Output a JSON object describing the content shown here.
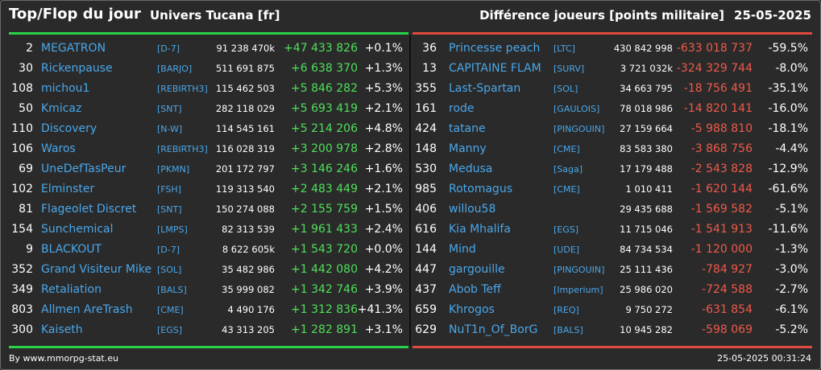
{
  "header": {
    "title": "Top/Flop du jour",
    "subtitle": "Univers Tucana [fr]",
    "metric": "Différence joueurs [points militaire]",
    "date": "25-05-2025"
  },
  "colors": {
    "top": "#2ad24a",
    "flop": "#e04a3f",
    "name": "#4aa7ea",
    "background": "#2a2a2a"
  },
  "top": [
    {
      "rank": "2",
      "name": "MEGATRON",
      "alliance": "[D-7]",
      "points": "91 238 470k",
      "diff": "+47 433 826",
      "pct": "+0.1%"
    },
    {
      "rank": "30",
      "name": "Rickenpause",
      "alliance": "[BARJO]",
      "points": "511 691 875",
      "diff": "+6 638 370",
      "pct": "+1.3%"
    },
    {
      "rank": "108",
      "name": "michou1",
      "alliance": "[REBIRTH3]",
      "points": "115 462 503",
      "diff": "+5 846 282",
      "pct": "+5.3%"
    },
    {
      "rank": "50",
      "name": "Kmicaz",
      "alliance": "[SNT]",
      "points": "282 118 029",
      "diff": "+5 693 419",
      "pct": "+2.1%"
    },
    {
      "rank": "110",
      "name": "Discovery",
      "alliance": "[N-W]",
      "points": "114 545 161",
      "diff": "+5 214 206",
      "pct": "+4.8%"
    },
    {
      "rank": "106",
      "name": "Waros",
      "alliance": "[REBIRTH3]",
      "points": "116 028 319",
      "diff": "+3 200 978",
      "pct": "+2.8%"
    },
    {
      "rank": "69",
      "name": "UneDefTasPeur",
      "alliance": "[PKMN]",
      "points": "201 172 797",
      "diff": "+3 146 246",
      "pct": "+1.6%"
    },
    {
      "rank": "102",
      "name": "Elminster",
      "alliance": "[FSH]",
      "points": "119 313 540",
      "diff": "+2 483 449",
      "pct": "+2.1%"
    },
    {
      "rank": "81",
      "name": "Flageolet Discret",
      "alliance": "[SNT]",
      "points": "150 274 088",
      "diff": "+2 155 759",
      "pct": "+1.5%"
    },
    {
      "rank": "154",
      "name": "Sunchemical",
      "alliance": "[LMPS]",
      "points": "82 313 539",
      "diff": "+1 961 433",
      "pct": "+2.4%"
    },
    {
      "rank": "9",
      "name": "BLACKOUT",
      "alliance": "[D-7]",
      "points": "8 622 605k",
      "diff": "+1 543 720",
      "pct": "+0.0%"
    },
    {
      "rank": "352",
      "name": "Grand Visiteur Mike",
      "alliance": "[SOL]",
      "points": "35 482 986",
      "diff": "+1 442 080",
      "pct": "+4.2%"
    },
    {
      "rank": "349",
      "name": "Retaliation",
      "alliance": "[BALS]",
      "points": "35 999 082",
      "diff": "+1 342 746",
      "pct": "+3.9%"
    },
    {
      "rank": "803",
      "name": "Allmen AreTrash",
      "alliance": "[CME]",
      "points": "4 490 176",
      "diff": "+1 312 836",
      "pct": "+41.3%"
    },
    {
      "rank": "300",
      "name": "Kaiseth",
      "alliance": "[EGS]",
      "points": "43 313 205",
      "diff": "+1 282 891",
      "pct": "+3.1%"
    }
  ],
  "flop": [
    {
      "rank": "36",
      "name": "Princesse peach",
      "alliance": "[LTC]",
      "points": "430 842 998",
      "diff": "-633 018 737",
      "pct": "-59.5%"
    },
    {
      "rank": "13",
      "name": "CAPITAINE FLAM",
      "alliance": "[SURV]",
      "points": "3 721 032k",
      "diff": "-324 329 744",
      "pct": "-8.0%"
    },
    {
      "rank": "355",
      "name": "Last-Spartan",
      "alliance": "[SOL]",
      "points": "34 663 795",
      "diff": "-18 756 491",
      "pct": "-35.1%"
    },
    {
      "rank": "161",
      "name": "rode",
      "alliance": "[GAULOIS]",
      "points": "78 018 986",
      "diff": "-14 820 141",
      "pct": "-16.0%"
    },
    {
      "rank": "424",
      "name": "tatane",
      "alliance": "[PINGOUIN]",
      "points": "27 159 664",
      "diff": "-5 988 810",
      "pct": "-18.1%"
    },
    {
      "rank": "148",
      "name": "Manny",
      "alliance": "[CME]",
      "points": "83 583 380",
      "diff": "-3 868 756",
      "pct": "-4.4%"
    },
    {
      "rank": "530",
      "name": "Medusa",
      "alliance": "[Saga]",
      "points": "17 179 488",
      "diff": "-2 543 828",
      "pct": "-12.9%"
    },
    {
      "rank": "985",
      "name": "Rotomagus",
      "alliance": "[CME]",
      "points": "1 010 411",
      "diff": "-1 620 144",
      "pct": "-61.6%"
    },
    {
      "rank": "406",
      "name": "willou58",
      "alliance": "",
      "points": "29 435 688",
      "diff": "-1 569 582",
      "pct": "-5.1%"
    },
    {
      "rank": "616",
      "name": "Kia Mhalifa",
      "alliance": "[EGS]",
      "points": "11 715 046",
      "diff": "-1 541 913",
      "pct": "-11.6%"
    },
    {
      "rank": "144",
      "name": "Mind",
      "alliance": "[UDE]",
      "points": "84 734 534",
      "diff": "-1 120 000",
      "pct": "-1.3%"
    },
    {
      "rank": "447",
      "name": "gargouille",
      "alliance": "[PINGOUIN]",
      "points": "25 111 436",
      "diff": "-784 927",
      "pct": "-3.0%"
    },
    {
      "rank": "437",
      "name": "Abob Teff",
      "alliance": "[Imperium]",
      "points": "25 986 020",
      "diff": "-724 588",
      "pct": "-2.7%"
    },
    {
      "rank": "659",
      "name": "Khrogos",
      "alliance": "[REQ]",
      "points": "9 750 272",
      "diff": "-631 854",
      "pct": "-6.1%"
    },
    {
      "rank": "629",
      "name": "NuT1n_Of_BorG",
      "alliance": "[BALS]",
      "points": "10 945 282",
      "diff": "-598 069",
      "pct": "-5.2%"
    }
  ],
  "footer": {
    "source": "By www.mmorpg-stat.eu",
    "timestamp": "25-05-2025 00:31:24"
  }
}
